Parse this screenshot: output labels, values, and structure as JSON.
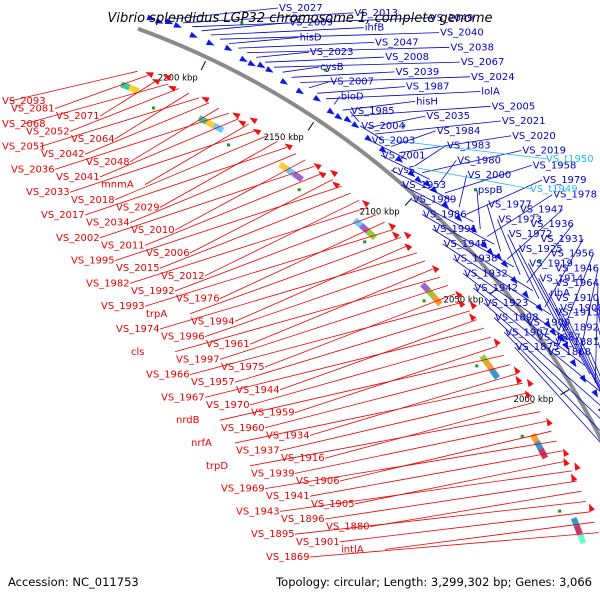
{
  "title": "Vibrio splendidus LGP32 chromosome 1, complete genome",
  "footer": {
    "accession": "Accession: NC_011753",
    "topology": "Topology: circular; Length: 3,299,302 bp; Genes: 3,066"
  },
  "colors": {
    "forward_label": "#0000cc",
    "reverse_label": "#ee0000",
    "rna_label": "#22bbee",
    "backbone": "#8a8a8a",
    "forward_gene": "#0a18e8",
    "reverse_gene": "#ee1111"
  },
  "scale_ticks": [
    {
      "label": "2200 kbp",
      "pos": 2200
    },
    {
      "label": "2150 kbp",
      "pos": 2150
    },
    {
      "label": "2100 kbp",
      "pos": 2100
    },
    {
      "label": "2050 kbp",
      "pos": 2050
    },
    {
      "label": "2000 kbp",
      "pos": 2000
    }
  ],
  "forward_labels": [
    {
      "text": "VS_2027",
      "slot": 0
    },
    {
      "text": "VS_2013",
      "slot": 1
    },
    {
      "text": "VS_2049",
      "slot": 2
    },
    {
      "text": "VS_2009",
      "slot": 3
    },
    {
      "text": "ihfB",
      "slot": 4
    },
    {
      "text": "VS_2040",
      "slot": 5
    },
    {
      "text": "hisD",
      "slot": 6
    },
    {
      "text": "VS_2047",
      "slot": 7
    },
    {
      "text": "VS_2038",
      "slot": 8
    },
    {
      "text": "VS_2023",
      "slot": 9
    },
    {
      "text": "VS_2008",
      "slot": 10
    },
    {
      "text": "VS_2067",
      "slot": 11
    },
    {
      "text": "cysB",
      "slot": 12
    },
    {
      "text": "VS_2039",
      "slot": 13
    },
    {
      "text": "VS_2024",
      "slot": 14
    },
    {
      "text": "VS_2007",
      "slot": 15
    },
    {
      "text": "VS_1987",
      "slot": 16
    },
    {
      "text": "lolA",
      "slot": 17
    },
    {
      "text": "bioD",
      "slot": 18
    },
    {
      "text": "hisH",
      "slot": 19
    },
    {
      "text": "VS_2005",
      "slot": 20
    },
    {
      "text": "VS_1985",
      "slot": 21
    },
    {
      "text": "VS_2035",
      "slot": 22
    },
    {
      "text": "VS_2021",
      "slot": 23
    },
    {
      "text": "VS_2004",
      "slot": 24
    },
    {
      "text": "VS_1984",
      "slot": 25
    },
    {
      "text": "VS_2020",
      "slot": 26
    },
    {
      "text": "VS_2003",
      "slot": 27
    },
    {
      "text": "VS_1983",
      "slot": 28
    },
    {
      "text": "VS_2019",
      "slot": 29
    },
    {
      "text": "VS_2001",
      "slot": 30
    },
    {
      "text": "VS_1980",
      "slot": 31
    },
    {
      "text": "VS_1958",
      "slot": 32
    },
    {
      "text": "cysS",
      "slot": 33
    },
    {
      "text": "VS_2000",
      "slot": 34
    },
    {
      "text": "VS_1979",
      "slot": 35
    },
    {
      "text": "VS_1953",
      "slot": 36
    },
    {
      "text": "pspB",
      "slot": 37
    },
    {
      "text": "VS_1978",
      "slot": 38
    },
    {
      "text": "VS_1989",
      "slot": 39
    },
    {
      "text": "VS_1977",
      "slot": 40
    },
    {
      "text": "VS_1947",
      "slot": 41
    },
    {
      "text": "VS_1986",
      "slot": 42
    },
    {
      "text": "VS_1973",
      "slot": 43
    },
    {
      "text": "VS_1936",
      "slot": 44
    },
    {
      "text": "VS_1991",
      "slot": 45
    },
    {
      "text": "VS_1972",
      "slot": 46
    },
    {
      "text": "VS_1931",
      "slot": 47
    },
    {
      "text": "VS_1945",
      "slot": 48
    },
    {
      "text": "VS_1925",
      "slot": 49
    },
    {
      "text": "VS_1956",
      "slot": 50
    },
    {
      "text": "VS_1938",
      "slot": 51
    },
    {
      "text": "VS_1919",
      "slot": 52
    },
    {
      "text": "VS_1946",
      "slot": 53
    },
    {
      "text": "VS_1932",
      "slot": 54
    },
    {
      "text": "VS_1914",
      "slot": 55
    },
    {
      "text": "VS_1964",
      "slot": 56
    },
    {
      "text": "VS_1942",
      "slot": 57
    },
    {
      "text": "ribA",
      "slot": 58
    },
    {
      "text": "VS_1910",
      "slot": 59
    },
    {
      "text": "VS_1923",
      "slot": 60
    },
    {
      "text": "VS_1908",
      "slot": 61
    },
    {
      "text": "VS_1913",
      "slot": 62
    },
    {
      "text": "VS_1898",
      "slot": 63
    },
    {
      "text": "VS_1909",
      "slot": 64
    },
    {
      "text": "VS_1892",
      "slot": 65
    },
    {
      "text": "VS_1907",
      "slot": 66
    },
    {
      "text": "VS_1887",
      "slot": 67
    },
    {
      "text": "VS_1881",
      "slot": 68
    },
    {
      "text": "VS_1875",
      "slot": 69
    },
    {
      "text": "VS_1868",
      "slot": 70
    }
  ],
  "rna_labels": [
    {
      "text": "VS_t1950",
      "slot": 0
    },
    {
      "text": "VS_t1949",
      "slot": 1
    }
  ],
  "reverse_labels": [
    {
      "text": "VS_2093",
      "slot": 0
    },
    {
      "text": "VS_2081",
      "slot": 1
    },
    {
      "text": "VS_2071",
      "slot": 2
    },
    {
      "text": "VS_2068",
      "slot": 3
    },
    {
      "text": "VS_2052",
      "slot": 4
    },
    {
      "text": "VS_2064",
      "slot": 5
    },
    {
      "text": "VS_2051",
      "slot": 6
    },
    {
      "text": "VS_2042",
      "slot": 7
    },
    {
      "text": "VS_2048",
      "slot": 8
    },
    {
      "text": "VS_2036",
      "slot": 9
    },
    {
      "text": "VS_2041",
      "slot": 10
    },
    {
      "text": "mnmA",
      "slot": 11
    },
    {
      "text": "VS_2033",
      "slot": 12
    },
    {
      "text": "VS_2018",
      "slot": 13
    },
    {
      "text": "VS_2029",
      "slot": 14
    },
    {
      "text": "VS_2017",
      "slot": 15
    },
    {
      "text": "VS_2034",
      "slot": 16
    },
    {
      "text": "VS_2010",
      "slot": 17
    },
    {
      "text": "VS_2002",
      "slot": 18
    },
    {
      "text": "VS_2011",
      "slot": 19
    },
    {
      "text": "VS_2006",
      "slot": 20
    },
    {
      "text": "VS_1995",
      "slot": 21
    },
    {
      "text": "VS_2015",
      "slot": 22
    },
    {
      "text": "VS_2012",
      "slot": 23
    },
    {
      "text": "VS_1982",
      "slot": 24
    },
    {
      "text": "VS_1992",
      "slot": 25
    },
    {
      "text": "VS_1976",
      "slot": 26
    },
    {
      "text": "VS_1993",
      "slot": 27
    },
    {
      "text": "trpA",
      "slot": 28
    },
    {
      "text": "VS_1994",
      "slot": 29
    },
    {
      "text": "VS_1974",
      "slot": 30
    },
    {
      "text": "VS_1996",
      "slot": 31
    },
    {
      "text": "VS_1961",
      "slot": 32
    },
    {
      "text": "cls",
      "slot": 33
    },
    {
      "text": "VS_1997",
      "slot": 34
    },
    {
      "text": "VS_1975",
      "slot": 35
    },
    {
      "text": "VS_1966",
      "slot": 36
    },
    {
      "text": "VS_1957",
      "slot": 37
    },
    {
      "text": "VS_1944",
      "slot": 38
    },
    {
      "text": "VS_1967",
      "slot": 39
    },
    {
      "text": "VS_1970",
      "slot": 40
    },
    {
      "text": "VS_1959",
      "slot": 41
    },
    {
      "text": "nrdB",
      "slot": 42
    },
    {
      "text": "VS_1960",
      "slot": 43
    },
    {
      "text": "VS_1934",
      "slot": 44
    },
    {
      "text": "nrfA",
      "slot": 45
    },
    {
      "text": "VS_1937",
      "slot": 46
    },
    {
      "text": "VS_1916",
      "slot": 47
    },
    {
      "text": "trpD",
      "slot": 48
    },
    {
      "text": "VS_1939",
      "slot": 49
    },
    {
      "text": "VS_1906",
      "slot": 50
    },
    {
      "text": "VS_1969",
      "slot": 51
    },
    {
      "text": "VS_1941",
      "slot": 52
    },
    {
      "text": "VS_1905",
      "slot": 53
    },
    {
      "text": "VS_1943",
      "slot": 54
    },
    {
      "text": "VS_1896",
      "slot": 55
    },
    {
      "text": "VS_1880",
      "slot": 56
    },
    {
      "text": "VS_1895",
      "slot": 57
    },
    {
      "text": "VS_1901",
      "slot": 58
    },
    {
      "text": "intlA",
      "slot": 59
    },
    {
      "text": "VS_1869",
      "slot": 60
    }
  ]
}
